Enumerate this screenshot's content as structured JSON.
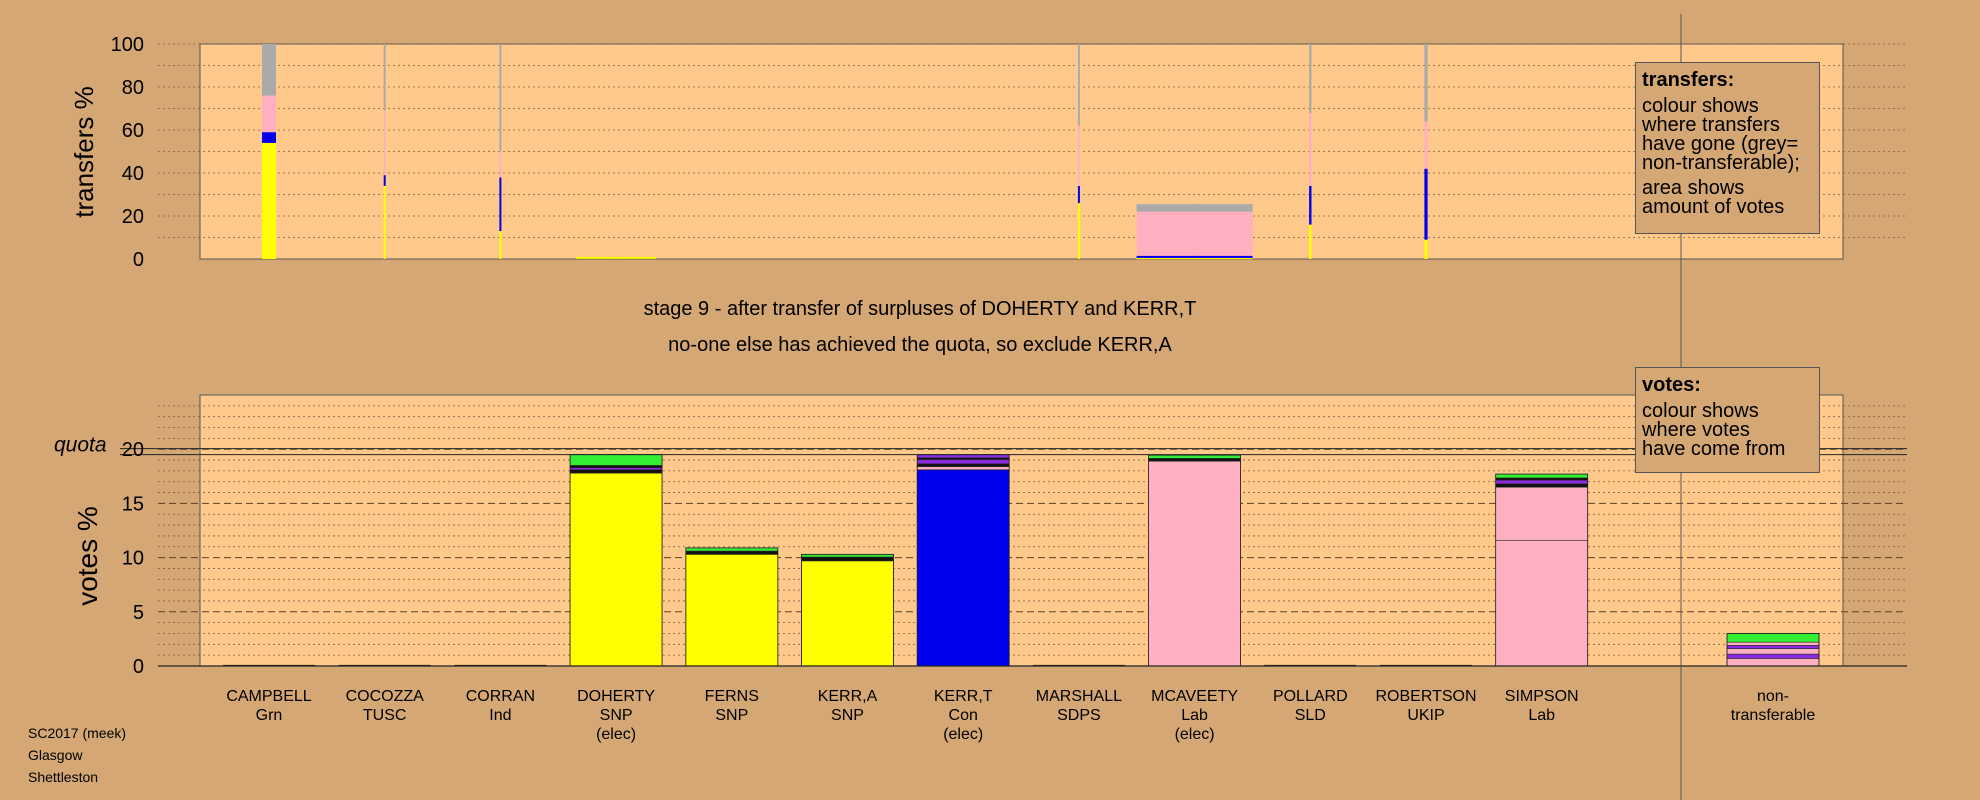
{
  "chart_data": {
    "type": "bar",
    "candidates": [
      {
        "name": "CAMPBELL",
        "party": "Grn",
        "elected": ""
      },
      {
        "name": "COCOZZA",
        "party": "TUSC",
        "elected": ""
      },
      {
        "name": "CORRAN",
        "party": "Ind",
        "elected": ""
      },
      {
        "name": "DOHERTY",
        "party": "SNP",
        "elected": "(elec)"
      },
      {
        "name": "FERNS",
        "party": "SNP",
        "elected": ""
      },
      {
        "name": "KERR,A",
        "party": "SNP",
        "elected": ""
      },
      {
        "name": "KERR,T",
        "party": "Con",
        "elected": "(elec)"
      },
      {
        "name": "MARSHALL",
        "party": "SDPS",
        "elected": ""
      },
      {
        "name": "MCAVEETY",
        "party": "Lab",
        "elected": "(elec)"
      },
      {
        "name": "POLLARD",
        "party": "SLD",
        "elected": ""
      },
      {
        "name": "ROBERTSON",
        "party": "UKIP",
        "elected": ""
      },
      {
        "name": "SIMPSON",
        "party": "Lab",
        "elected": ""
      }
    ],
    "nontransferable_label": "non-\ntransferable",
    "quota_label": "quota",
    "quota": 19.5,
    "votes_axis": {
      "label": "votes %",
      "ylim": [
        0,
        25
      ],
      "ticks": [
        0,
        5,
        10,
        15,
        20
      ]
    },
    "transfers_axis": {
      "label": "transfers %",
      "ylim": [
        0,
        100
      ],
      "ticks": [
        0,
        20,
        40,
        60,
        80,
        100
      ]
    },
    "colors": {
      "yellow": "#ffff00",
      "blue": "#0000ee",
      "pink": "#ffb0c0",
      "grey": "#aaaaaa",
      "green": "#33ee33",
      "black": "#111111",
      "purple": "#8a2be2",
      "plot_bg": "#ffc98c",
      "page_bg": "#d4a774"
    },
    "votes": [
      {
        "candidate": "CAMPBELL",
        "segments": []
      },
      {
        "candidate": "COCOZZA",
        "segments": []
      },
      {
        "candidate": "CORRAN",
        "segments": []
      },
      {
        "candidate": "DOHERTY",
        "segments": [
          [
            "yellow",
            17.8
          ],
          [
            "black",
            0.3
          ],
          [
            "purple",
            0.2
          ],
          [
            "black",
            0.2
          ],
          [
            "green",
            1.0
          ]
        ]
      },
      {
        "candidate": "FERNS",
        "segments": [
          [
            "yellow",
            10.3
          ],
          [
            "black",
            0.3
          ],
          [
            "green",
            0.3
          ]
        ]
      },
      {
        "candidate": "KERR,A",
        "segments": [
          [
            "yellow",
            9.7
          ],
          [
            "black",
            0.35
          ],
          [
            "green",
            0.25
          ]
        ]
      },
      {
        "candidate": "KERR,T",
        "segments": [
          [
            "blue",
            18.1
          ],
          [
            "pink",
            0.3
          ],
          [
            "black",
            0.25
          ],
          [
            "purple",
            0.4
          ],
          [
            "black",
            0.15
          ],
          [
            "purple",
            0.3
          ]
        ]
      },
      {
        "candidate": "MARSHALL",
        "segments": []
      },
      {
        "candidate": "MCAVEETY",
        "segments": [
          [
            "pink",
            18.9
          ],
          [
            "black",
            0.25
          ],
          [
            "green",
            0.3
          ]
        ]
      },
      {
        "candidate": "POLLARD",
        "segments": []
      },
      {
        "candidate": "ROBERTSON",
        "segments": []
      },
      {
        "candidate": "SIMPSON",
        "segments": [
          [
            "pink",
            11.6
          ],
          [
            "pink",
            4.9
          ],
          [
            "black",
            0.3
          ],
          [
            "purple",
            0.35
          ],
          [
            "black",
            0.2
          ],
          [
            "green",
            0.35
          ]
        ]
      },
      {
        "candidate": "non-transferable",
        "segments": [
          [
            "pink",
            0.7
          ],
          [
            "purple",
            0.4
          ],
          [
            "pink",
            0.5
          ],
          [
            "purple",
            0.3
          ],
          [
            "pink",
            0.3
          ],
          [
            "green",
            0.8
          ]
        ]
      }
    ],
    "transfers": [
      {
        "candidate": "CAMPBELL",
        "width_pct": 3.5,
        "segments": [
          [
            "yellow",
            54
          ],
          [
            "blue",
            5
          ],
          [
            "pink",
            17
          ],
          [
            "grey",
            24
          ]
        ]
      },
      {
        "candidate": "COCOZZA",
        "width_pct": 0.5,
        "segments": [
          [
            "yellow",
            34
          ],
          [
            "blue",
            5
          ],
          [
            "pink",
            30
          ],
          [
            "grey",
            31
          ]
        ]
      },
      {
        "candidate": "CORRAN",
        "width_pct": 0.35,
        "segments": [
          [
            "yellow",
            13
          ],
          [
            "blue",
            25
          ],
          [
            "pink",
            12
          ],
          [
            "grey",
            50
          ]
        ]
      },
      {
        "candidate": "DOHERTY",
        "width_pct": 0.5,
        "segments": [
          [
            "yellow",
            1
          ]
        ]
      },
      {
        "candidate": "FERNS",
        "width_pct": 0,
        "segments": []
      },
      {
        "candidate": "KERR,A",
        "width_pct": 0,
        "segments": []
      },
      {
        "candidate": "KERR,T",
        "width_pct": 0,
        "segments": []
      },
      {
        "candidate": "MARSHALL",
        "width_pct": 0.4,
        "segments": [
          [
            "yellow",
            26
          ],
          [
            "blue",
            8
          ],
          [
            "pink",
            28
          ],
          [
            "grey",
            38
          ]
        ]
      },
      {
        "candidate": "MCAVEETY",
        "width_pct": 0.5,
        "segments": [
          [
            "yellow",
            0.5
          ],
          [
            "blue",
            1
          ],
          [
            "pink",
            20.5
          ],
          [
            "grey",
            3.5
          ]
        ]
      },
      {
        "candidate": "POLLARD",
        "width_pct": 0.6,
        "segments": [
          [
            "yellow",
            16
          ],
          [
            "blue",
            18
          ],
          [
            "pink",
            34
          ],
          [
            "grey",
            32
          ]
        ]
      },
      {
        "candidate": "ROBERTSON",
        "width_pct": 0.8,
        "segments": [
          [
            "yellow",
            9
          ],
          [
            "blue",
            33
          ],
          [
            "pink",
            22
          ],
          [
            "grey",
            36
          ]
        ]
      },
      {
        "candidate": "SIMPSON",
        "width_pct": 0,
        "segments": []
      }
    ]
  },
  "captions": {
    "line1": "stage 9 - after transfer of surpluses of DOHERTY and KERR,T",
    "line2": "no-one else has achieved the quota, so exclude KERR,A"
  },
  "legend_transfers": {
    "title": "transfers:",
    "body1": "colour shows\nwhere transfers\nhave gone (grey=\nnon-transferable);",
    "body2": "area shows\namount of votes"
  },
  "legend_votes": {
    "title": "votes:",
    "body": "colour shows\nwhere votes\nhave come from"
  },
  "source": {
    "line1": "SC2017 (meek)",
    "line2": "Glasgow",
    "line3": "Shettleston"
  }
}
